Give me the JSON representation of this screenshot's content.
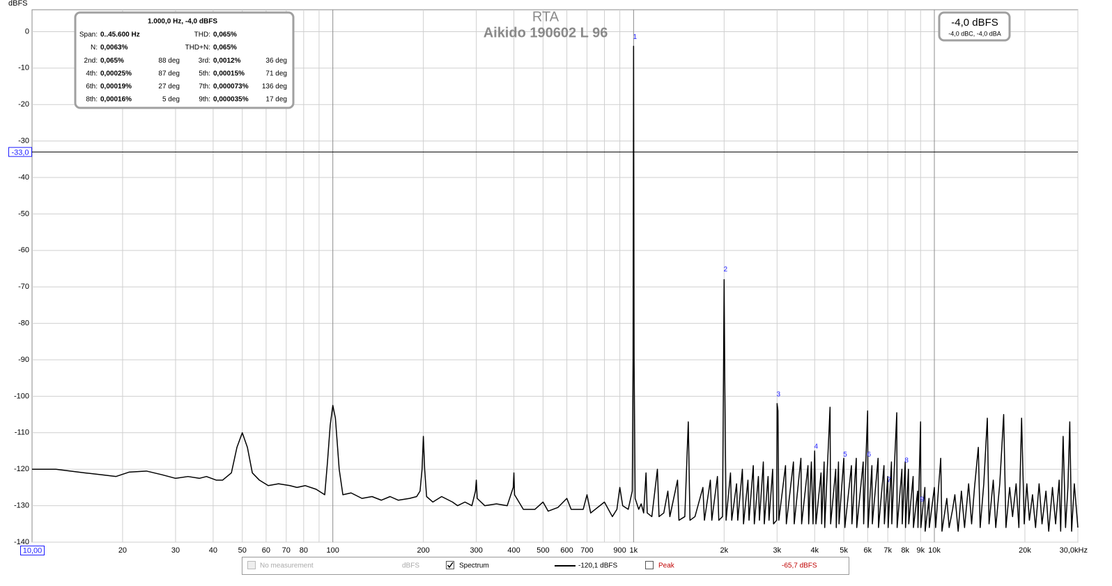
{
  "chart_data": {
    "type": "line",
    "title": "RTA",
    "subtitle": "Aikido 190602 L 96",
    "y_label": "dBFS",
    "log_x": true,
    "grid": true,
    "xlim": [
      10,
      30000
    ],
    "ylim": [
      -140,
      6
    ],
    "yticks": [
      0,
      -10,
      -20,
      -30,
      -40,
      -50,
      -60,
      -70,
      -80,
      -90,
      -100,
      -110,
      -120,
      -130,
      -140
    ],
    "xticks": [
      20,
      30,
      40,
      50,
      60,
      70,
      80,
      100,
      200,
      300,
      400,
      500,
      600,
      700,
      900,
      {
        "value": 1000,
        "label": "1k"
      },
      {
        "value": 2000,
        "label": "2k"
      },
      {
        "value": 3000,
        "label": "3k"
      },
      {
        "value": 4000,
        "label": "4k"
      },
      {
        "value": 5000,
        "label": "5k"
      },
      {
        "value": 6000,
        "label": "6k"
      },
      {
        "value": 7000,
        "label": "7k"
      },
      {
        "value": 8000,
        "label": "8k"
      },
      {
        "value": 9000,
        "label": "9k"
      },
      {
        "value": 10000,
        "label": "10k"
      },
      {
        "value": 20000,
        "label": "20k"
      },
      {
        "value": 30000,
        "label": "30,0kHz"
      }
    ],
    "xgrid_unlabeled": [
      90,
      800
    ],
    "x": [
      10,
      12,
      15,
      17,
      19,
      21,
      24,
      27,
      30,
      33,
      36,
      38,
      41,
      43,
      46,
      48,
      50,
      52,
      54,
      57,
      61,
      66,
      72,
      76,
      81,
      88,
      94,
      96,
      98,
      100,
      102,
      105,
      108,
      115,
      125,
      135,
      145,
      155,
      165,
      180,
      190,
      195,
      198,
      200,
      202,
      205,
      215,
      230,
      250,
      260,
      275,
      290,
      298,
      300,
      302,
      320,
      350,
      380,
      398,
      400,
      402,
      430,
      470,
      500,
      520,
      560,
      600,
      620,
      680,
      700,
      720,
      800,
      850,
      880,
      900,
      920,
      960,
      990,
      996,
      1000,
      1004,
      1012,
      1040,
      1060,
      1080,
      1100,
      1110,
      1150,
      1200,
      1215,
      1260,
      1300,
      1320,
      1400,
      1415,
      1480,
      1520,
      1540,
      1600,
      1700,
      1720,
      1800,
      1820,
      1900,
      1920,
      1975,
      1990,
      2000,
      2010,
      2030,
      2100,
      2120,
      2200,
      2220,
      2300,
      2320,
      2400,
      2420,
      2500,
      2520,
      2600,
      2620,
      2700,
      2720,
      2800,
      2820,
      2900,
      2920,
      2990,
      3000,
      3020,
      3040,
      3200,
      3220,
      3400,
      3420,
      3600,
      3620,
      3800,
      3820,
      3900,
      3950,
      4000,
      4040,
      4200,
      4220,
      4300,
      4320,
      4500,
      4520,
      4700,
      4720,
      4800,
      4820,
      5000,
      5040,
      5300,
      5320,
      5500,
      5520,
      5800,
      5820,
      6000,
      6020,
      6200,
      6220,
      6500,
      6520,
      6800,
      6820,
      7000,
      7020,
      7200,
      7220,
      7500,
      7520,
      7800,
      7820,
      8000,
      8020,
      8200,
      8220,
      8500,
      8520,
      8800,
      8820,
      9000,
      9020,
      9300,
      9320,
      9600,
      9620,
      10000,
      10100,
      10500,
      10600,
      11000,
      11200,
      11500,
      11700,
      12000,
      12300,
      12600,
      13000,
      13300,
      13600,
      14000,
      14200,
      14600,
      15000,
      15200,
      15700,
      16000,
      16500,
      17000,
      17300,
      17800,
      18200,
      18700,
      19100,
      19500,
      19900,
      20300,
      20700,
      21200,
      21700,
      22300,
      22800,
      23500,
      24000,
      24700,
      25300,
      26000,
      26300,
      26800,
      27300,
      27800,
      28200,
      28600,
      29200,
      30000
    ],
    "series": [
      {
        "name": "Spectrum",
        "color": "#000000",
        "values": [
          -120,
          -120,
          -121,
          -121.5,
          -122,
          -120.8,
          -120.5,
          -121.5,
          -122.5,
          -122,
          -122.5,
          -122,
          -123,
          -123,
          -121,
          -114,
          -110,
          -114,
          -121,
          -123,
          -124.5,
          -124,
          -124.5,
          -125,
          -124.5,
          -125.5,
          -127,
          -118,
          -108,
          -102.5,
          -106,
          -120,
          -127,
          -126.5,
          -128,
          -127.5,
          -128.5,
          -127.5,
          -128.5,
          -128,
          -127.5,
          -126,
          -120,
          -111,
          -120,
          -127.5,
          -129,
          -127.5,
          -129,
          -130,
          -129,
          -130,
          -126,
          -123,
          -128,
          -130,
          -129.5,
          -130,
          -125,
          -121,
          -127,
          -131,
          -131,
          -129,
          -131.5,
          -130.5,
          -128,
          -131,
          -131,
          -127,
          -132,
          -129,
          -133,
          -131,
          -125,
          -130,
          -131,
          -126,
          -90,
          -4,
          -90,
          -128,
          -131,
          -129.5,
          -132,
          -121,
          -132,
          -133,
          -120,
          -133,
          -132,
          -126,
          -133,
          -123,
          -134,
          -133,
          -107,
          -134,
          -133,
          -125,
          -134,
          -123,
          -134,
          -122,
          -134,
          -133,
          -95,
          -68,
          -95,
          -134,
          -121,
          -134,
          -124,
          -134,
          -120,
          -135,
          -123,
          -134,
          -119,
          -135,
          -122,
          -134,
          -118,
          -135,
          -122,
          -134,
          -120,
          -135,
          -134,
          -102,
          -104,
          -134,
          -119,
          -135,
          -118,
          -135,
          -117,
          -135,
          -119,
          -135,
          -118,
          -135,
          -115,
          -135,
          -121,
          -135,
          -118,
          -136,
          -103,
          -135,
          -120,
          -136,
          -118,
          -135,
          -117,
          -136,
          -119,
          -135,
          -117,
          -136,
          -118,
          -135,
          -104,
          -136,
          -119,
          -135,
          -117,
          -136,
          -119,
          -135,
          -122,
          -136,
          -118,
          -135,
          -104.5,
          -136,
          -120,
          -135,
          -118,
          -136,
          -120,
          -135,
          -122,
          -136,
          -126,
          -136,
          -107,
          -136,
          -125,
          -137,
          -128,
          -136,
          -125,
          -136,
          -117,
          -137,
          -128,
          -136,
          -131,
          -127,
          -137,
          -126,
          -136,
          -124,
          -135,
          -125,
          -114,
          -136,
          -124,
          -106,
          -135,
          -123,
          -136,
          -124,
          -105,
          -136,
          -125,
          -133,
          -124,
          -136,
          -106,
          -135,
          -124,
          -134,
          -127,
          -136,
          -124,
          -135,
          -126,
          -137,
          -125,
          -135,
          -123,
          -137,
          -111,
          -136,
          -125,
          -107,
          -137,
          -124,
          -136
        ]
      }
    ],
    "harmonic_markers": [
      {
        "label": "1",
        "x": 1000,
        "y": -1.5
      },
      {
        "label": "2",
        "x": 2000,
        "y": -65.3
      },
      {
        "label": "3",
        "x": 3000,
        "y": -99.5
      },
      {
        "label": "4",
        "x": 4000,
        "y": -113.8
      },
      {
        "label": "5",
        "x": 5000,
        "y": -116
      },
      {
        "label": "6",
        "x": 6000,
        "y": -116
      },
      {
        "label": "7",
        "x": 7000,
        "y": -123
      },
      {
        "label": "8",
        "x": 8000,
        "y": -117.6
      },
      {
        "label": "9",
        "x": 9000,
        "y": -128.3
      }
    ],
    "cursor": {
      "x": 10,
      "x_label": "10,00",
      "y": -33,
      "y_label": "-33,0"
    },
    "level_box": {
      "main": "-4,0 dBFS",
      "sub": "-4,0 dBC, -4,0 dBA"
    },
    "info_box": {
      "header": "1.000,0 Hz, -4,0 dBFS",
      "rows": [
        {
          "left": [
            "Span:",
            "0..45.600 Hz"
          ],
          "right": [
            "THD:",
            "0,065%"
          ]
        },
        {
          "left": [
            "N:",
            "0,0063%"
          ],
          "right": [
            "THD+N:",
            "0,065%"
          ]
        },
        {
          "left": [
            "2nd:",
            "0,065%",
            "88 deg"
          ],
          "right": [
            "3rd:",
            "0,0012%",
            "36 deg"
          ]
        },
        {
          "left": [
            "4th:",
            "0,00025%",
            "87 deg"
          ],
          "right": [
            "5th:",
            "0,00015%",
            "71 deg"
          ]
        },
        {
          "left": [
            "6th:",
            "0,00019%",
            "27 deg"
          ],
          "right": [
            "7th:",
            "0,000073%",
            "136 deg"
          ]
        },
        {
          "left": [
            "8th:",
            "0,00016%",
            "5 deg"
          ],
          "right": [
            "9th:",
            "0,000035%",
            "17 deg"
          ]
        }
      ]
    },
    "legend_bar": {
      "no_measurement": "No measurement",
      "no_measurement_unit": "dBFS",
      "spectrum": "Spectrum",
      "spectrum_level": "-120,1 dBFS",
      "peak": "Peak",
      "peak_level": "-65,7 dBFS"
    }
  }
}
